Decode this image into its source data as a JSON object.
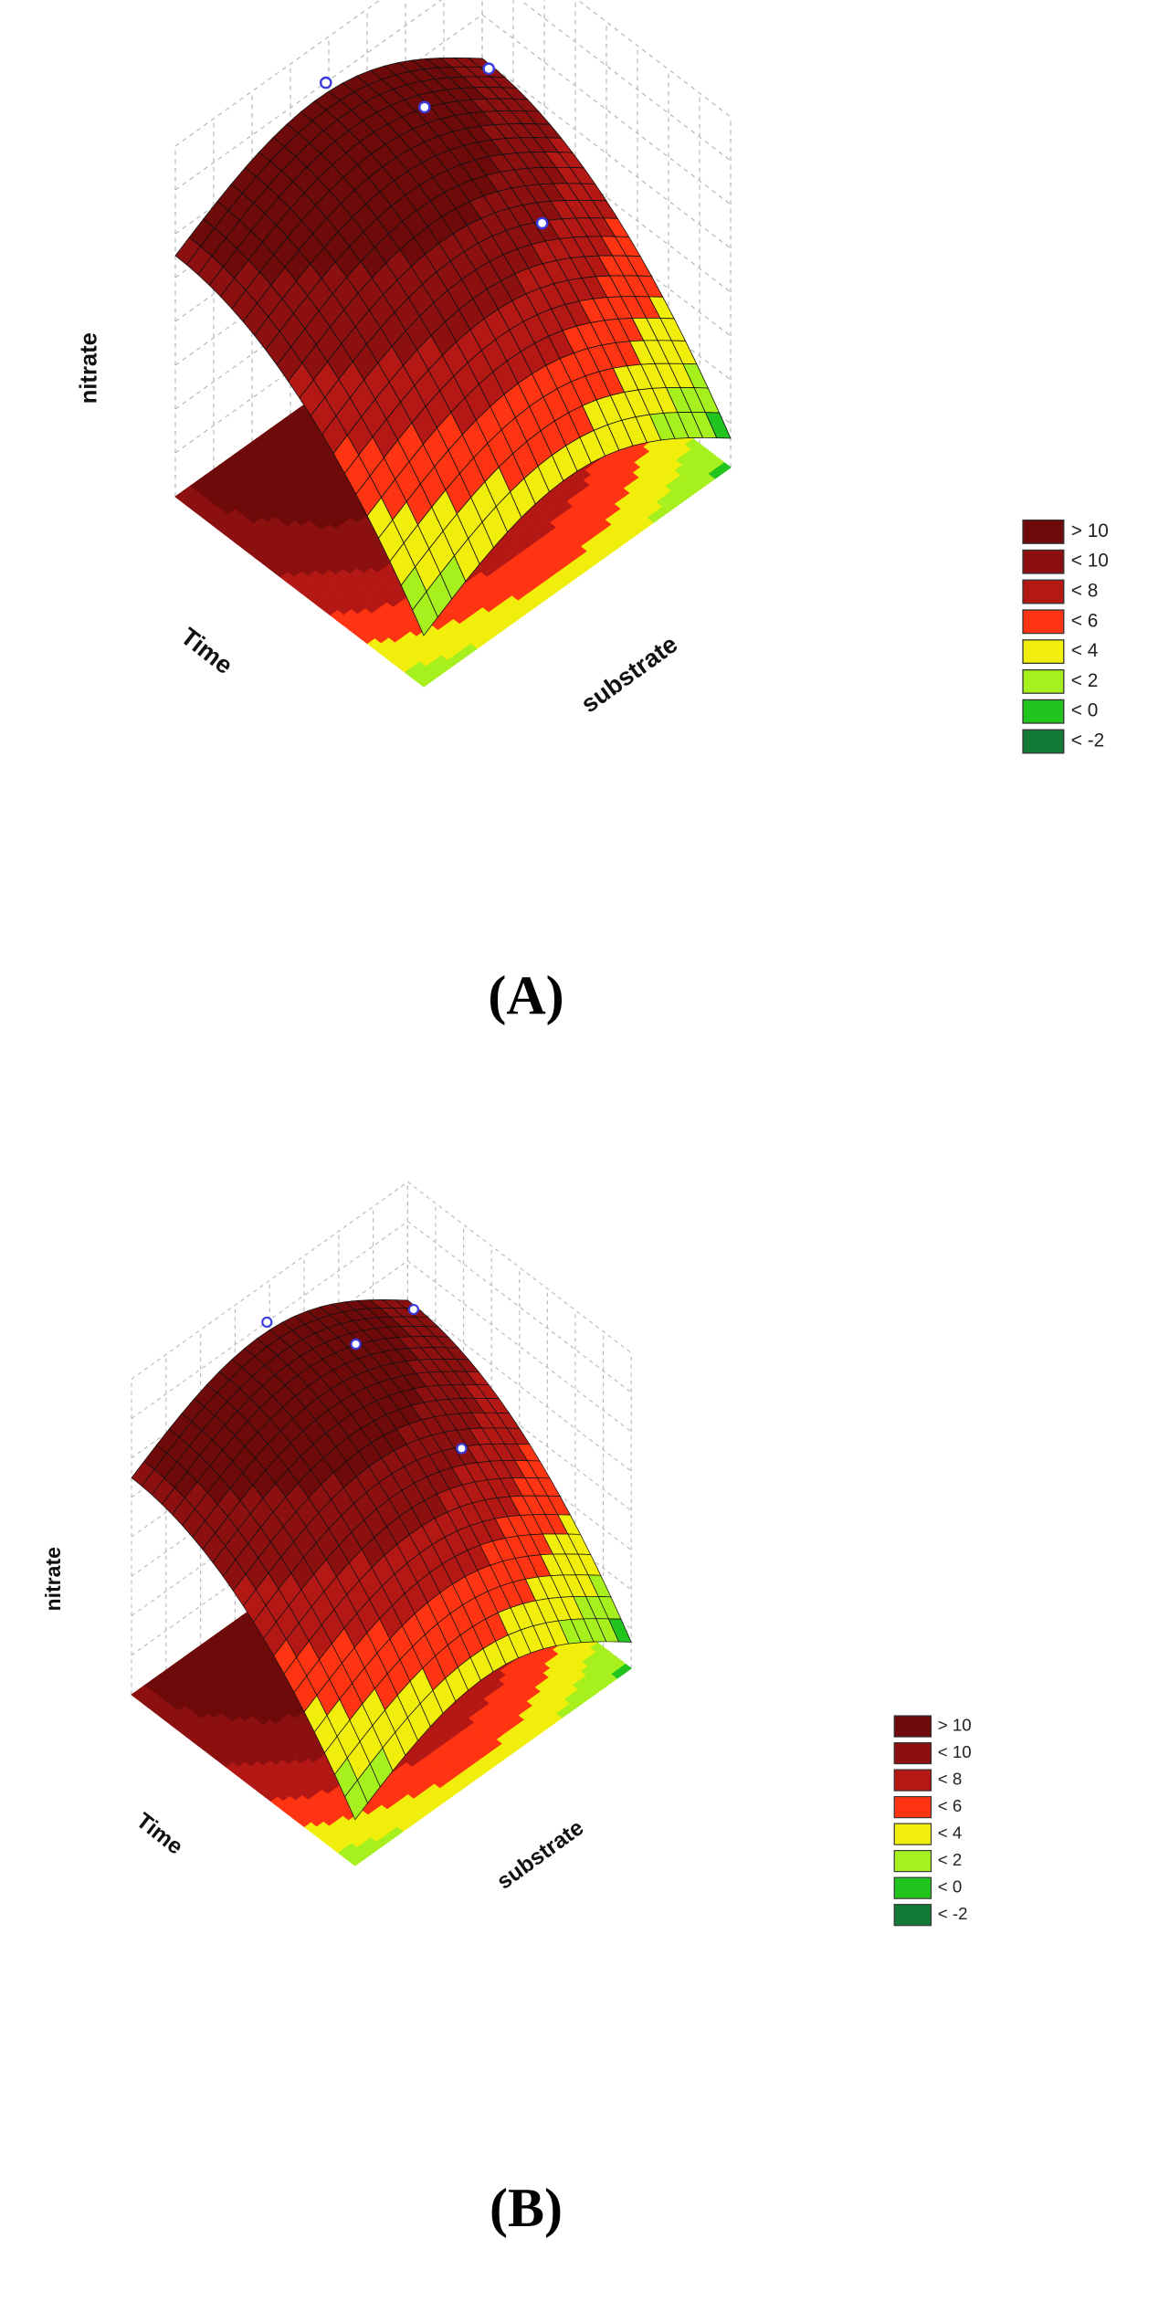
{
  "panels": [
    {
      "z_label": "nitrate",
      "x_label": "Time",
      "y_label": "substrate",
      "caption": "(A)",
      "legend": [
        {
          "label": "> 10",
          "color": "#6e0a0a"
        },
        {
          "label": "< 10",
          "color": "#8c1010"
        },
        {
          "label": "< 8",
          "color": "#b41814"
        },
        {
          "label": "< 6",
          "color": "#ff3412"
        },
        {
          "label": "< 4",
          "color": "#f2ee0c"
        },
        {
          "label": "< 2",
          "color": "#a6f01e"
        },
        {
          "label": "< 0",
          "color": "#22c41e"
        },
        {
          "label": "< -2",
          "color": "#127a34"
        }
      ]
    },
    {
      "z_label": "nitrate",
      "x_label": "Time",
      "y_label": "substrate",
      "caption": "(B)",
      "legend": [
        {
          "label": "> 10",
          "color": "#6e0a0a"
        },
        {
          "label": "< 10",
          "color": "#8c1010"
        },
        {
          "label": "< 8",
          "color": "#b41814"
        },
        {
          "label": "< 6",
          "color": "#ff3412"
        },
        {
          "label": "< 4",
          "color": "#f2ee0c"
        },
        {
          "label": "< 2",
          "color": "#a6f01e"
        },
        {
          "label": "< 0",
          "color": "#22c41e"
        },
        {
          "label": "< -2",
          "color": "#127a34"
        }
      ]
    }
  ]
}
